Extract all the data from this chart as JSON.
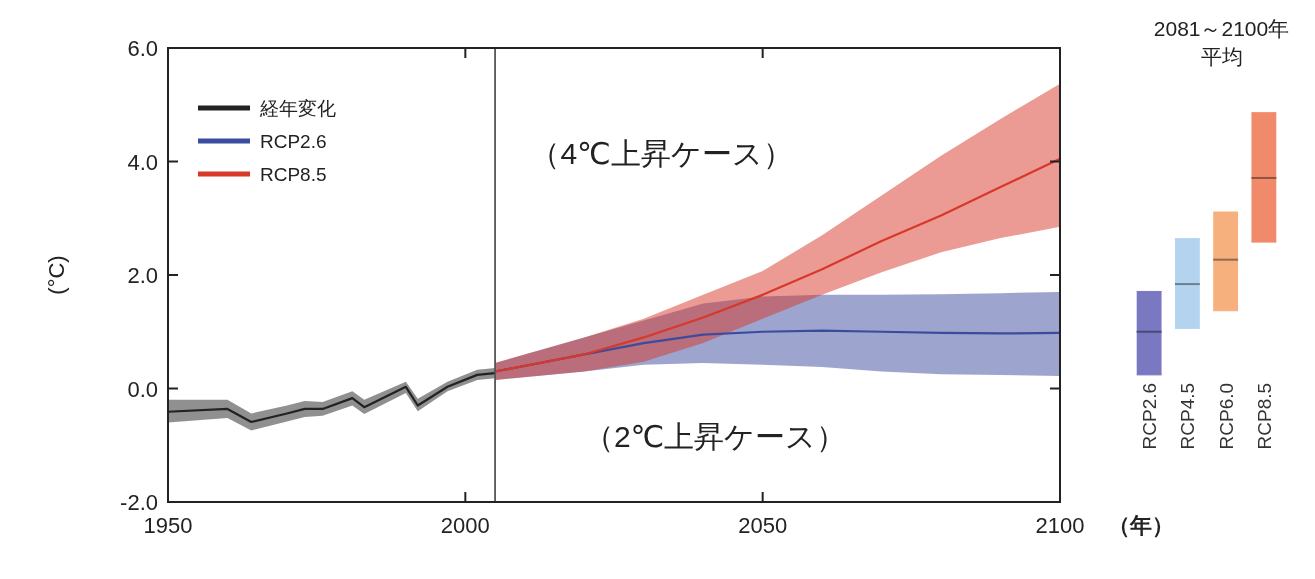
{
  "chart_data": [
    {
      "type": "line",
      "ylabel": "(°C)",
      "xlabel": "（年）",
      "xlim": [
        1950,
        2100
      ],
      "ylim": [
        -2,
        6
      ],
      "xticks": [
        1950,
        2000,
        2050,
        2100
      ],
      "yticks": [
        {
          "value": -2,
          "label": "-2.0"
        },
        {
          "value": 0,
          "label": "0.0"
        },
        {
          "value": 2,
          "label": "2.0"
        },
        {
          "value": 4,
          "label": "4.0"
        },
        {
          "value": 6,
          "label": "6.0"
        }
      ],
      "grid": false,
      "legend": "top left",
      "line_style": "solid",
      "marker": "none",
      "ref_lines": [
        {
          "axis": "x",
          "value": 2005,
          "color": "#555555"
        }
      ],
      "annotations": [
        "（4℃上昇ケース）",
        "（2℃上昇ケース）"
      ],
      "series": [
        {
          "name": "経年変化",
          "color": "#222222",
          "x": [
            1950,
            1960,
            1964,
            1970,
            1973,
            1976,
            1981,
            1983,
            1990,
            1992,
            1997,
            2002,
            2005
          ],
          "values": [
            -0.41,
            -0.36,
            -0.59,
            -0.44,
            -0.36,
            -0.36,
            -0.17,
            -0.33,
            0.03,
            -0.3,
            0.03,
            0.24,
            0.27
          ],
          "lower": [
            -0.6,
            -0.52,
            -0.74,
            -0.58,
            -0.5,
            -0.48,
            -0.3,
            -0.45,
            -0.08,
            -0.4,
            -0.05,
            0.15,
            0.18
          ],
          "upper": [
            -0.2,
            -0.2,
            -0.44,
            -0.3,
            -0.22,
            -0.24,
            -0.05,
            -0.2,
            0.12,
            -0.18,
            0.12,
            0.33,
            0.36
          ]
        },
        {
          "name": "RCP2.6",
          "color": "#3b4c9e",
          "x": [
            2005,
            2020,
            2030,
            2040,
            2050,
            2060,
            2070,
            2080,
            2090,
            2100
          ],
          "values": [
            0.3,
            0.6,
            0.8,
            0.95,
            1.0,
            1.02,
            1.0,
            0.98,
            0.97,
            0.98
          ],
          "lower": [
            0.15,
            0.3,
            0.42,
            0.45,
            0.42,
            0.38,
            0.3,
            0.25,
            0.24,
            0.22
          ],
          "upper": [
            0.45,
            0.9,
            1.2,
            1.5,
            1.62,
            1.65,
            1.65,
            1.66,
            1.68,
            1.7
          ]
        },
        {
          "name": "RCP8.5",
          "color": "#d8382a",
          "x": [
            2005,
            2020,
            2030,
            2040,
            2050,
            2060,
            2070,
            2080,
            2090,
            2100
          ],
          "values": [
            0.3,
            0.6,
            0.9,
            1.25,
            1.65,
            2.1,
            2.6,
            3.05,
            3.55,
            4.05
          ],
          "lower": [
            0.15,
            0.3,
            0.47,
            0.8,
            1.23,
            1.65,
            2.05,
            2.4,
            2.65,
            2.85
          ],
          "upper": [
            0.45,
            0.9,
            1.23,
            1.65,
            2.07,
            2.7,
            3.4,
            4.1,
            4.75,
            5.37
          ]
        }
      ]
    },
    {
      "type": "box",
      "title": "2081～2100年",
      "subtitle": "平均",
      "ylim": [
        -2,
        6
      ],
      "tick_labels": "x",
      "categories": [
        "RCP2.6",
        "RCP4.5",
        "RCP6.0",
        "RCP8.5"
      ],
      "colors": [
        "#7b78c2",
        "#b3d3ef",
        "#f6b07d",
        "#f08a6b"
      ],
      "boxes": [
        {
          "low": 0.24,
          "q1": 0.24,
          "median": 1.0,
          "q3": 1.71,
          "high": 1.71
        },
        {
          "low": 1.06,
          "q1": 1.06,
          "median": 1.84,
          "q3": 2.64,
          "high": 2.64
        },
        {
          "low": 1.37,
          "q1": 1.37,
          "median": 2.27,
          "q3": 3.11,
          "high": 3.11
        },
        {
          "low": 2.58,
          "q1": 2.58,
          "median": 3.71,
          "q3": 4.86,
          "high": 4.86
        }
      ]
    }
  ]
}
